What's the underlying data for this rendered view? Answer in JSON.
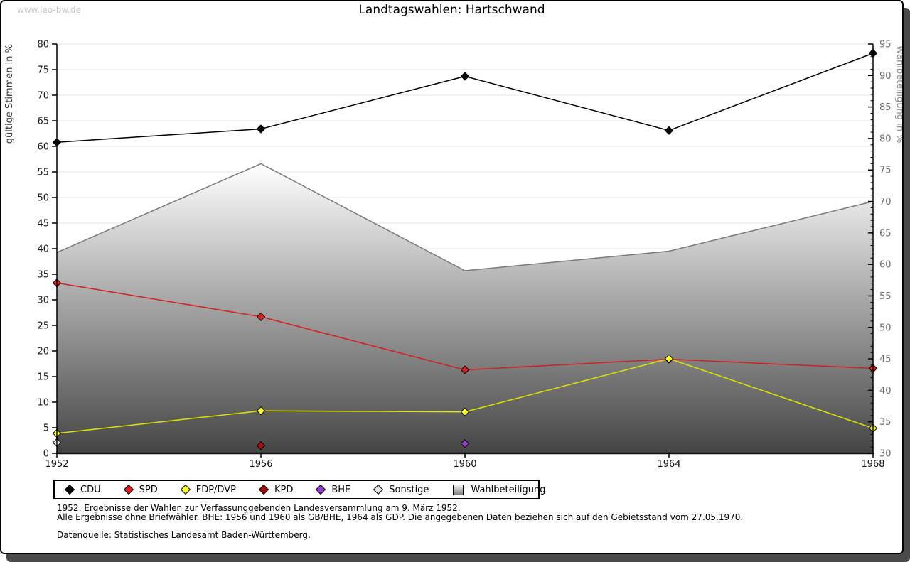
{
  "page": {
    "watermark": "www.leo-bw.de",
    "title": "Landtagswahlen: Hartschwand",
    "footnotes": [
      "1952: Ergebnisse der Wahlen zur Verfassunggebenden Landesversammlung am 9. März 1952.",
      "Alle Ergebnisse ohne Briefwähler. BHE: 1956 und 1960 als GB/BHE, 1964 als GDP. Die angegebenen Daten beziehen sich auf den Gebietsstand vom 27.05.1970.",
      "Datenquelle: Statistisches Landesamt Baden-Württemberg."
    ]
  },
  "chart_data": {
    "type": "line",
    "title": "Landtagswahlen: Hartschwand",
    "x": [
      1952,
      1956,
      1960,
      1964,
      1968
    ],
    "left_axis": {
      "label": "gültige Stimmen in %",
      "min": 0,
      "max": 80,
      "step": 5,
      "ticks": [
        0,
        5,
        10,
        15,
        20,
        25,
        30,
        35,
        40,
        45,
        50,
        55,
        60,
        65,
        70,
        75,
        80
      ]
    },
    "right_axis": {
      "label": "Wahlbeteiligung in %",
      "min": 30,
      "max": 95,
      "step": 5,
      "minor_step": 1,
      "ticks": [
        30,
        35,
        40,
        45,
        50,
        55,
        60,
        65,
        70,
        75,
        80,
        85,
        90,
        95
      ]
    },
    "grid": "horizontal",
    "legend_position": "bottom",
    "series": [
      {
        "name": "CDU",
        "type": "line",
        "axis": "left",
        "color": "#000000",
        "marker_fill": "#000000",
        "values": [
          60.8,
          63.4,
          73.7,
          63.1,
          78.2
        ]
      },
      {
        "name": "SPD",
        "type": "line",
        "axis": "left",
        "color": "#d42020",
        "marker_fill": "#dd1f1f",
        "values": [
          33.3,
          26.7,
          16.3,
          18.4,
          16.6
        ]
      },
      {
        "name": "FDP/DVP",
        "type": "line",
        "axis": "left",
        "color": "#e3e300",
        "marker_fill": "#ffff29",
        "values": [
          3.9,
          8.3,
          8.1,
          18.5,
          4.9
        ]
      },
      {
        "name": "KPD",
        "type": "line",
        "axis": "left",
        "color": "#aa0e0e",
        "marker_fill": "#aa0e0e",
        "values": [
          null,
          1.5,
          null,
          null,
          null
        ]
      },
      {
        "name": "BHE",
        "type": "line",
        "axis": "left",
        "color": "#9b3fd0",
        "marker_fill": "#9b3fd0",
        "values": [
          null,
          null,
          1.9,
          null,
          null
        ]
      },
      {
        "name": "Sonstige",
        "type": "line",
        "axis": "left",
        "color": "#9a9a9a",
        "marker_fill": "#e6e6e6",
        "values": [
          2.1,
          null,
          null,
          null,
          null
        ]
      },
      {
        "name": "Wahlbeteiligung",
        "type": "area",
        "axis": "right",
        "color": "#7a7a7a",
        "gradient": [
          "#ffffff",
          "#454545"
        ],
        "values": [
          61.9,
          76.0,
          59.0,
          62.1,
          70.0
        ]
      }
    ]
  }
}
